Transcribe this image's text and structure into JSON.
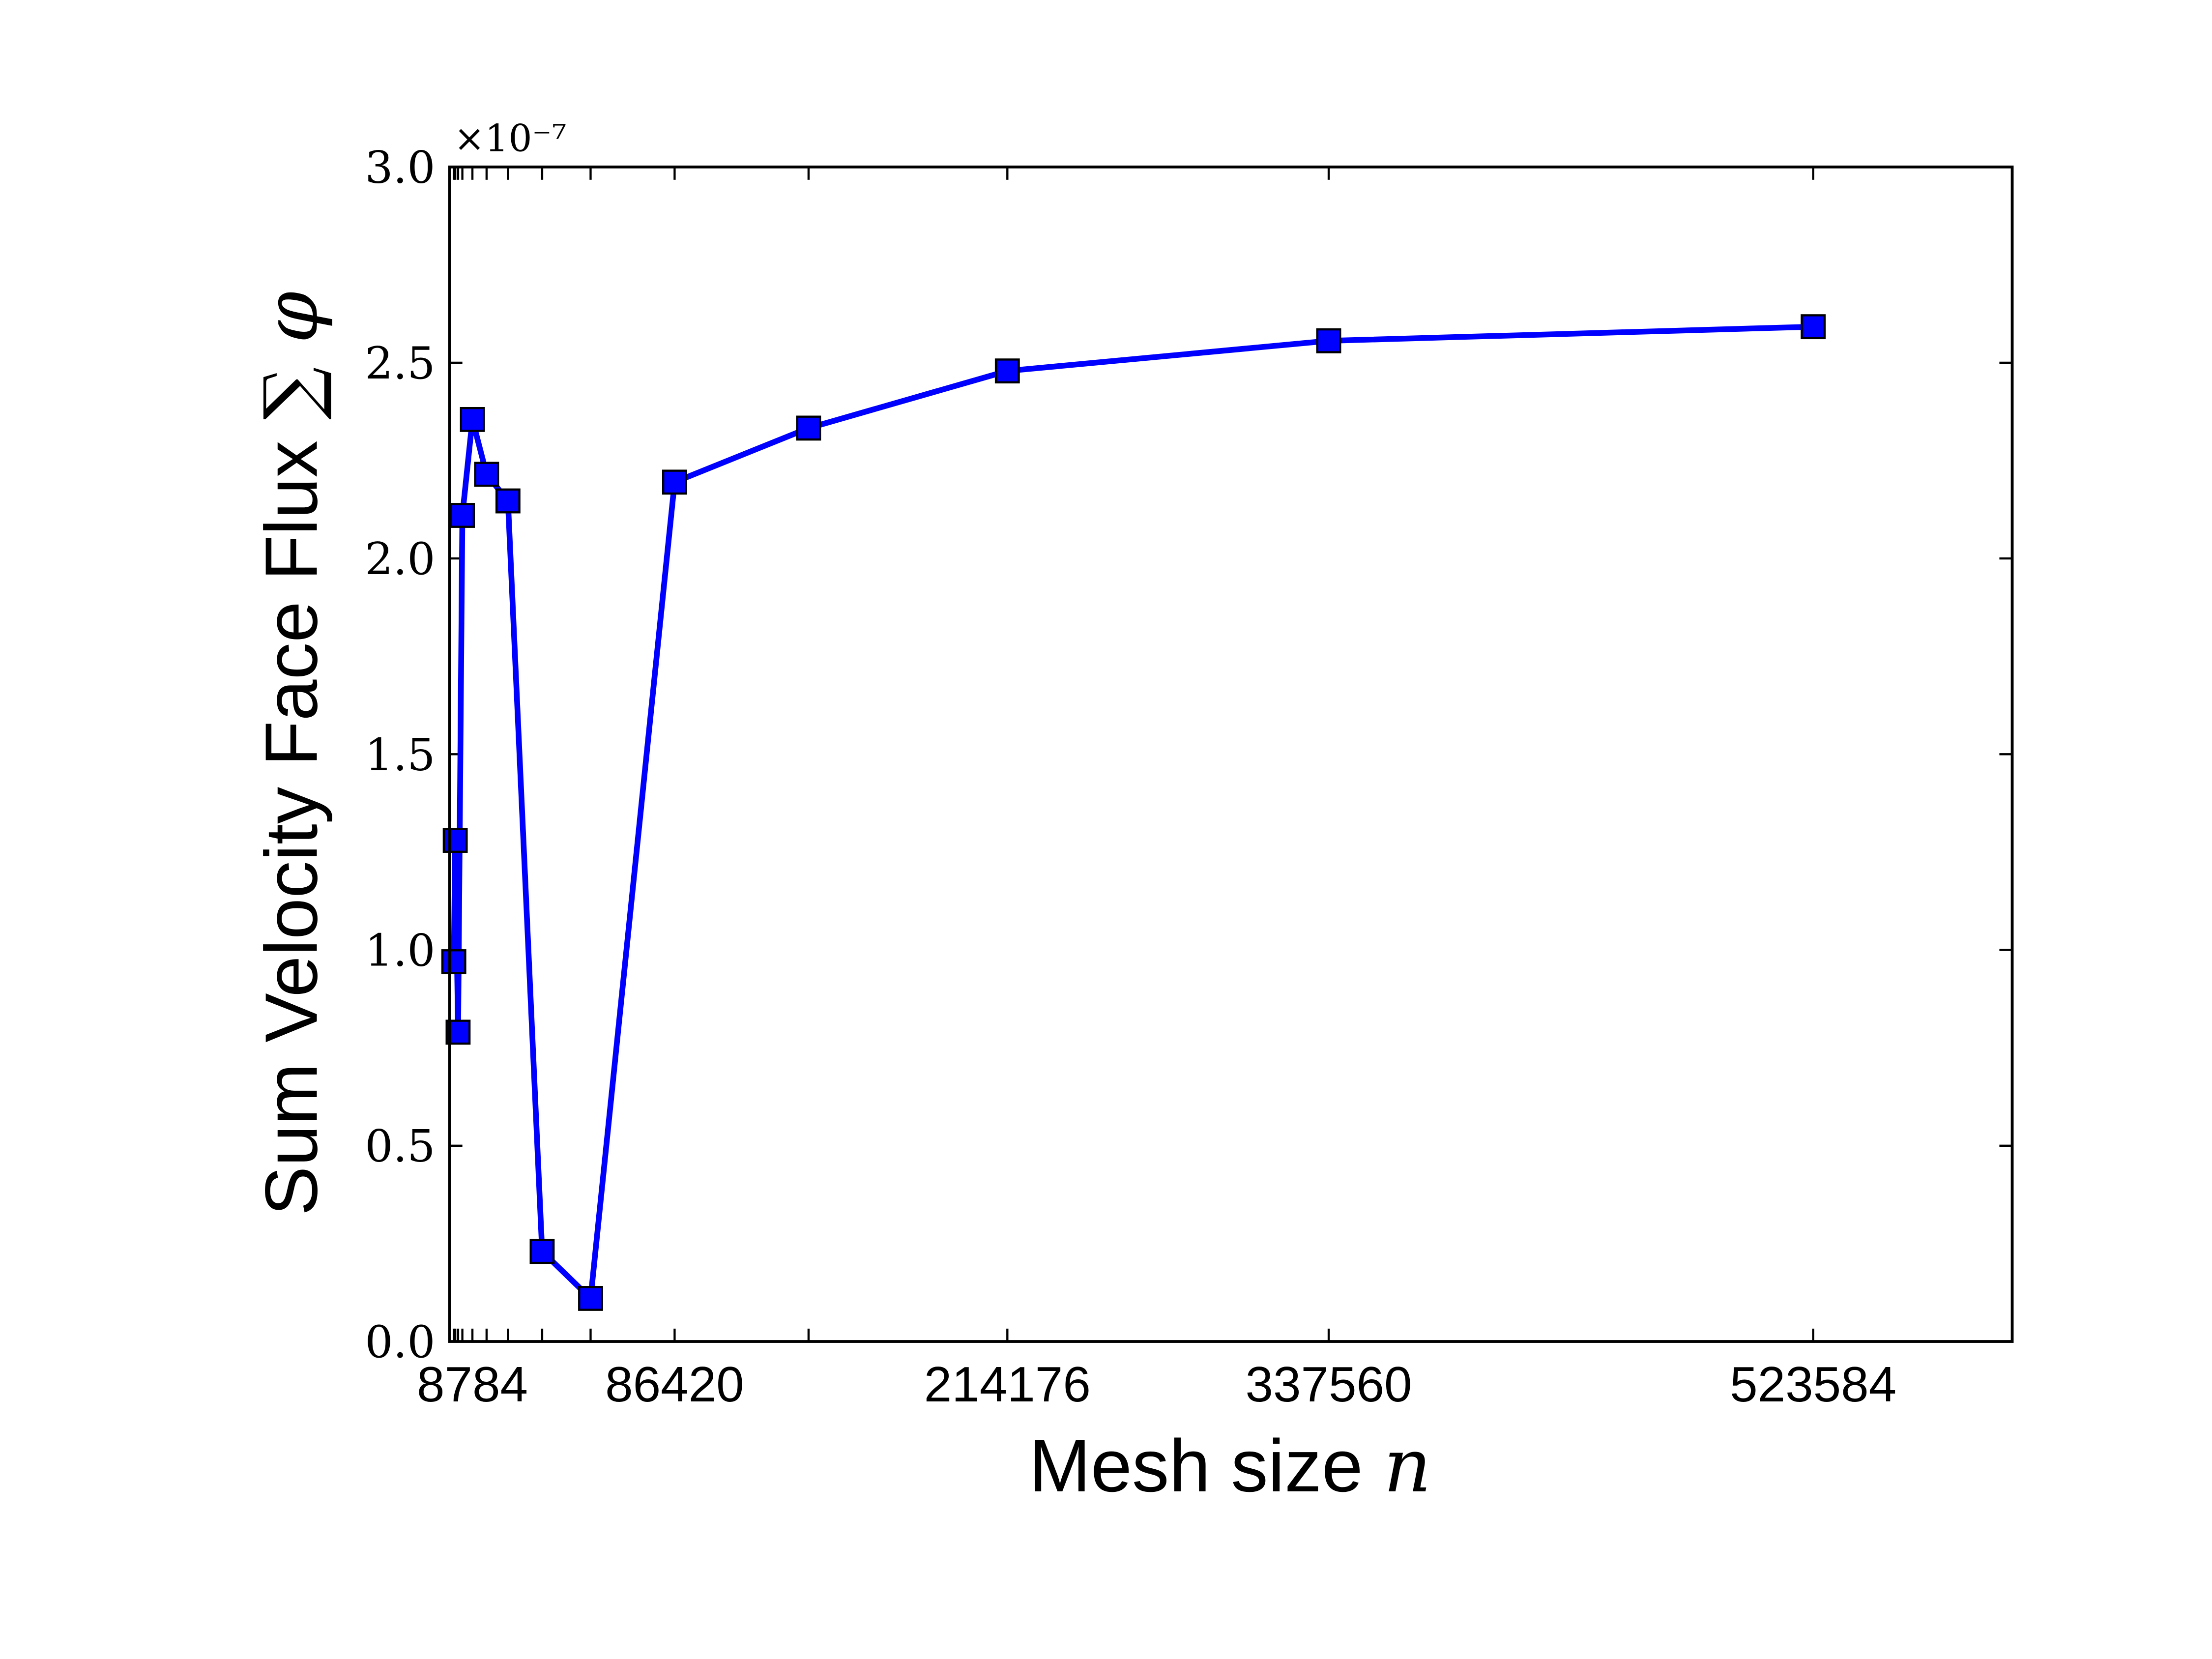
{
  "chart_data": {
    "type": "line",
    "xlabel": "Mesh size",
    "xlabel_var": "n",
    "ylabel": "Sum Velocity Face Flux",
    "ylabel_var": "∑ φ",
    "offset_text": "×10⁻⁷",
    "x": [
      1641,
      2188,
      3282,
      4923,
      8784,
      14223,
      22430,
      35560,
      54160,
      86420,
      137850,
      214176,
      337560,
      523584
    ],
    "series": [
      {
        "color": "#0000ff",
        "values": [
          0.97,
          1.28,
          0.79,
          2.11,
          2.355,
          2.215,
          2.147,
          0.23,
          0.11,
          2.195,
          2.333,
          2.479,
          2.556,
          2.592
        ]
      }
    ],
    "xlim": [
      0,
      600000
    ],
    "xticks": [
      {
        "value": 1641,
        "label": null
      },
      {
        "value": 2188,
        "label": null
      },
      {
        "value": 3282,
        "label": null
      },
      {
        "value": 4923,
        "label": null
      },
      8784,
      {
        "value": 14223,
        "label": null
      },
      {
        "value": 22430,
        "label": null
      },
      {
        "value": 35560,
        "label": null
      },
      {
        "value": 54160,
        "label": null
      },
      86420,
      {
        "value": 137850,
        "label": null
      },
      214176,
      337560,
      523584
    ],
    "ylim": [
      0,
      3
    ],
    "yticks": [
      {
        "value": 0,
        "label": "0.0"
      },
      0.5,
      {
        "value": 1,
        "label": "1.0"
      },
      1.5,
      {
        "value": 2,
        "label": "2.0"
      },
      2.5,
      {
        "value": 3,
        "label": "3.0"
      }
    ],
    "grid": false
  }
}
